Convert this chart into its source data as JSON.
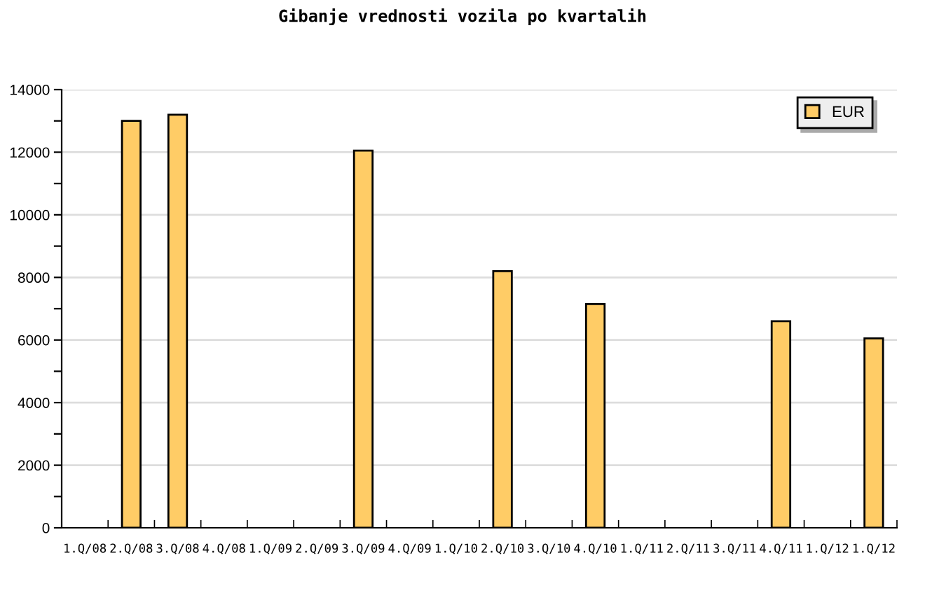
{
  "chart_data": {
    "type": "bar",
    "title": "Gibanje vrednosti vozila po kvartalih",
    "categories": [
      "1.Q/08",
      "2.Q/08",
      "3.Q/08",
      "4.Q/08",
      "1.Q/09",
      "2.Q/09",
      "3.Q/09",
      "4.Q/09",
      "1.Q/10",
      "2.Q/10",
      "3.Q/10",
      "4.Q/10",
      "1.Q/11",
      "2.Q/11",
      "3.Q/11",
      "4.Q/11",
      "1.Q/12",
      "1.Q/12"
    ],
    "series": [
      {
        "name": "EUR",
        "color": "#ffcc66",
        "values": [
          null,
          13000,
          13200,
          null,
          null,
          null,
          12050,
          null,
          null,
          8200,
          null,
          7150,
          null,
          null,
          null,
          6600,
          null,
          6050
        ]
      }
    ],
    "ylim": [
      0,
      14000
    ],
    "yticks": [
      0,
      {
        "value": 1000,
        "label": null
      },
      2000,
      {
        "value": 3000,
        "label": null
      },
      4000,
      {
        "value": 5000,
        "label": null
      },
      6000,
      {
        "value": 7000,
        "label": null
      },
      8000,
      {
        "value": 9000,
        "label": null
      },
      10000,
      {
        "value": 11000,
        "label": null
      },
      12000,
      {
        "value": 13000,
        "label": null
      },
      14000
    ],
    "grid": "y",
    "legend": "top right"
  }
}
